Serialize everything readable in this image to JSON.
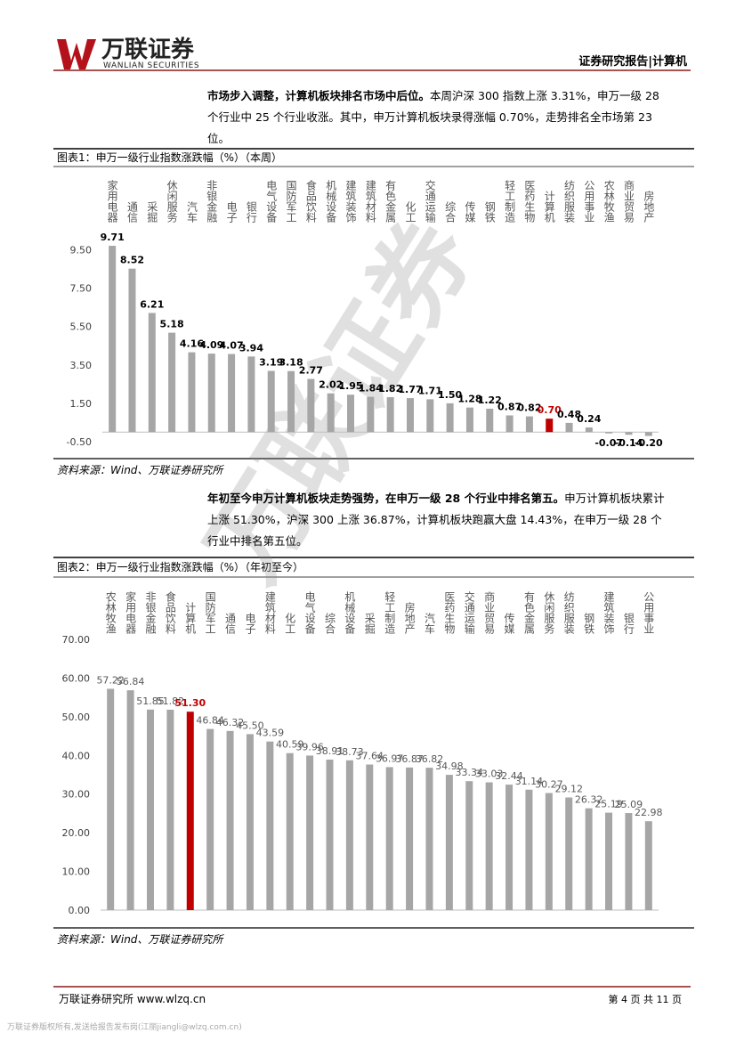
{
  "header": {
    "logo_cn": "万联证券",
    "logo_en": "WANLIAN SECURITIES",
    "report_type": "证券研究报告|计算机"
  },
  "paragraphs": [
    {
      "lead": "市场步入调整，计算机板块排名市场中后位。",
      "body": "本周沪深 300 指数上涨 3.31%，申万一级 28 个行业中 25 个行业收涨。其中，申万计算机板块录得涨幅 0.70%，走势排名全市场第 23 位。"
    },
    {
      "lead": "年初至今申万计算机板块走势强势，在申万一级 28 个行业中排名第五。",
      "body": "申万计算机板块累计上涨 51.30%，沪深 300 上涨 36.87%，计算机板块跑赢大盘 14.43%，在申万一级 28 个行业中排名第五位。"
    }
  ],
  "charts": [
    {
      "title": "图表1：申万一级行业指数涨跌幅（%）（本周）",
      "source": "资料来源：Wind、万联证券研究所",
      "chart_data": {
        "type": "bar",
        "categories": [
          "家用电器",
          "通信",
          "采掘",
          "休闲服务",
          "汽车",
          "非银金融",
          "电子",
          "银行",
          "电气设备",
          "国防军工",
          "食品饮料",
          "机械设备",
          "建筑装饰",
          "建筑材料",
          "有色金属",
          "化工",
          "交通运输",
          "综合",
          "传媒",
          "钢铁",
          "轻工制造",
          "医药生物",
          "计算机",
          "纺织服装",
          "公用事业",
          "农林牧渔",
          "商业贸易",
          "房地产"
        ],
        "values": [
          9.71,
          8.52,
          6.21,
          5.18,
          4.16,
          4.09,
          4.07,
          3.94,
          3.19,
          3.18,
          2.77,
          2.02,
          1.95,
          1.84,
          1.82,
          1.77,
          1.71,
          1.5,
          1.28,
          1.22,
          0.87,
          0.82,
          0.7,
          0.48,
          0.24,
          -0.07,
          -0.14,
          -0.2
        ],
        "value_labels": [
          "9.71",
          "8.52",
          "6.21",
          "5.18",
          "4.16",
          "4.09",
          "4.07",
          "3.94",
          "3.19",
          "3.18",
          "2.77",
          "2.02",
          "1.95",
          "1.84",
          "1.82",
          "1.77",
          "1.71",
          "1.50",
          "1.28",
          "1.22",
          "0.87",
          "0.82",
          "0.70",
          "0.48",
          "0.24",
          "-0.07",
          "-0.14",
          "-0.20"
        ],
        "colors": [
          "#a6a6a6",
          "#a6a6a6",
          "#a6a6a6",
          "#a6a6a6",
          "#a6a6a6",
          "#a6a6a6",
          "#a6a6a6",
          "#a6a6a6",
          "#a6a6a6",
          "#a6a6a6",
          "#a6a6a6",
          "#a6a6a6",
          "#a6a6a6",
          "#a6a6a6",
          "#a6a6a6",
          "#a6a6a6",
          "#a6a6a6",
          "#a6a6a6",
          "#a6a6a6",
          "#a6a6a6",
          "#a6a6a6",
          "#a6a6a6",
          "#c00000",
          "#a6a6a6",
          "#a6a6a6",
          "#a6a6a6",
          "#a6a6a6",
          "#a6a6a6"
        ],
        "ylim": [
          -0.5,
          10.5
        ],
        "yticks": [
          {
            "value": -0.5,
            "label": "-0.50"
          },
          {
            "value": 1.5,
            "label": "1.50"
          },
          {
            "value": 3.5,
            "label": "3.50"
          },
          {
            "value": 5.5,
            "label": "5.50"
          },
          {
            "value": 7.5,
            "label": "7.50"
          },
          {
            "value": 9.5,
            "label": "9.50"
          }
        ]
      }
    },
    {
      "title": "图表2：申万一级行业指数涨跌幅（%）（年初至今）",
      "source": "资料来源：Wind、万联证券研究所",
      "chart_data": {
        "type": "bar",
        "categories": [
          "农林牧渔",
          "家用电器",
          "非银金融",
          "食品饮料",
          "计算机",
          "国防军工",
          "通信",
          "电子",
          "建筑材料",
          "化工",
          "电气设备",
          "综合",
          "机械设备",
          "采掘",
          "轻工制造",
          "房地产",
          "汽车",
          "医药生物",
          "交通运输",
          "商业贸易",
          "传媒",
          "有色金属",
          "休闲服务",
          "纺织服装",
          "钢铁",
          "建筑装饰",
          "银行",
          "公用事业"
        ],
        "values": [
          57.22,
          56.84,
          51.85,
          51.82,
          51.3,
          46.84,
          46.32,
          45.5,
          43.59,
          40.59,
          39.96,
          38.91,
          38.73,
          37.64,
          36.97,
          36.87,
          36.82,
          34.98,
          33.34,
          33.03,
          32.44,
          31.14,
          30.27,
          29.12,
          26.32,
          25.19,
          25.09,
          22.98
        ],
        "value_labels": [
          "57.22",
          "56.84",
          "51.85",
          "51.82",
          "51.30",
          "46.84",
          "46.32",
          "45.50",
          "43.59",
          "40.59",
          "39.96",
          "38.91",
          "38.73",
          "37.64",
          "36.97",
          "36.87",
          "36.82",
          "34.98",
          "33.34",
          "33.03",
          "32.44",
          "31.14",
          "30.27",
          "29.12",
          "26.32",
          "25.19",
          "25.09",
          "22.98"
        ],
        "colors": [
          "#a6a6a6",
          "#a6a6a6",
          "#a6a6a6",
          "#a6a6a6",
          "#c00000",
          "#a6a6a6",
          "#a6a6a6",
          "#a6a6a6",
          "#a6a6a6",
          "#a6a6a6",
          "#a6a6a6",
          "#a6a6a6",
          "#a6a6a6",
          "#a6a6a6",
          "#a6a6a6",
          "#a6a6a6",
          "#a6a6a6",
          "#a6a6a6",
          "#a6a6a6",
          "#a6a6a6",
          "#a6a6a6",
          "#a6a6a6",
          "#a6a6a6",
          "#a6a6a6",
          "#a6a6a6",
          "#a6a6a6",
          "#a6a6a6",
          "#a6a6a6"
        ],
        "ylim": [
          0,
          70
        ],
        "yticks": [
          {
            "value": 0,
            "label": "0.00"
          },
          {
            "value": 10,
            "label": "10.00"
          },
          {
            "value": 20,
            "label": "20.00"
          },
          {
            "value": 30,
            "label": "30.00"
          },
          {
            "value": 40,
            "label": "40.00"
          },
          {
            "value": 50,
            "label": "50.00"
          },
          {
            "value": 60,
            "label": "60.00"
          },
          {
            "value": 70,
            "label": "70.00"
          }
        ]
      }
    }
  ],
  "footer": {
    "institute": "万联证券研究所 www.wlzq.cn",
    "page": "第 4 页 共 11 页",
    "copyright": "万联证券版权所有,发送给报告发布岗(江丽jiangli@wlzq.com.cn)"
  },
  "watermark": "万联证券"
}
